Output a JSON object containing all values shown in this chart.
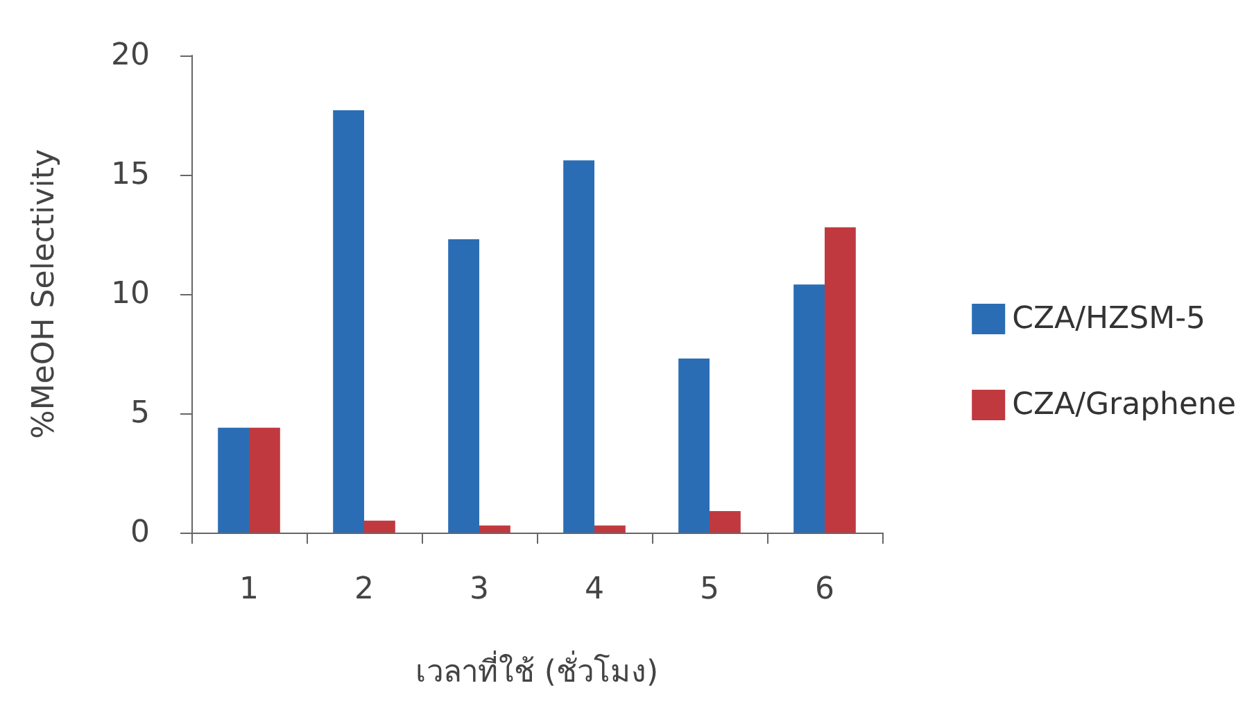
{
  "chart_data": {
    "type": "bar",
    "xlabel": "เวลาที่ใช้ (ชั่วโมง)",
    "ylabel": "%MeOH Selectivity",
    "categories": [
      "1",
      "2",
      "3",
      "4",
      "5",
      "6"
    ],
    "series": [
      {
        "name": "CZA/HZSM-5",
        "color": "#2a6db5",
        "values": [
          4.4,
          17.7,
          12.3,
          15.6,
          7.3,
          10.4
        ]
      },
      {
        "name": "CZA/Graphene",
        "color": "#c0393f",
        "values": [
          4.4,
          0.5,
          0.3,
          0.3,
          0.9,
          12.8
        ]
      }
    ],
    "ylim": [
      0,
      20
    ],
    "yticks": [
      0,
      5,
      10,
      15,
      20
    ],
    "grid": false,
    "legend": "right"
  }
}
